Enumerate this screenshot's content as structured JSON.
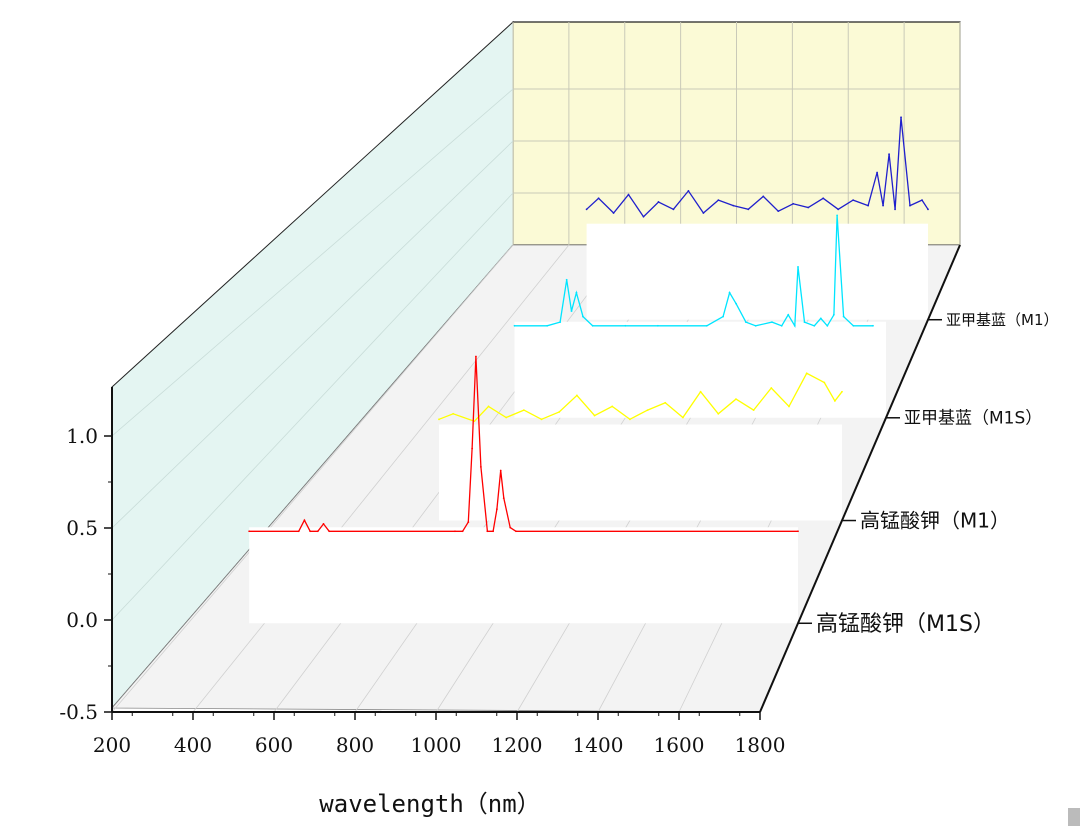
{
  "chart_data": {
    "type": "line",
    "title": "",
    "xlabel": "wavelength（nm）",
    "ylabel": "",
    "xlim": [
      200,
      1800
    ],
    "zlim": [
      -0.5,
      1.2
    ],
    "x_ticks": [
      "200",
      "400",
      "600",
      "800",
      "1000",
      "1200",
      "1400",
      "1600",
      "1800"
    ],
    "z_ticks": [
      "-0.5",
      "0.0",
      "0.5",
      "1.0"
    ],
    "grid": true,
    "series": [
      {
        "name": "高锰酸钾（M1S）",
        "color": "#ff0000",
        "x": [
          360,
          490,
          505,
          520,
          540,
          555,
          570,
          900,
          920,
          935,
          945,
          955,
          968,
          985,
          1000,
          1010,
          1020,
          1028,
          1045,
          1060,
          1800
        ],
        "y": [
          0.0,
          0.0,
          0.06,
          0.0,
          0.0,
          0.04,
          0.0,
          0.0,
          0.0,
          0.05,
          0.45,
          0.95,
          0.35,
          0.0,
          0.0,
          0.12,
          0.33,
          0.18,
          0.02,
          0.0,
          0.0
        ]
      },
      {
        "name": "高锰酸钾（M1）",
        "color": "#ffff00",
        "x": [
          660,
          700,
          760,
          800,
          850,
          900,
          950,
          1000,
          1050,
          1100,
          1150,
          1200,
          1250,
          1300,
          1350,
          1400,
          1450,
          1500,
          1550,
          1600,
          1650,
          1700,
          1750,
          1780,
          1800
        ],
        "y": [
          0.05,
          0.08,
          0.04,
          0.12,
          0.06,
          0.1,
          0.05,
          0.09,
          0.18,
          0.07,
          0.12,
          0.05,
          0.1,
          0.14,
          0.06,
          0.2,
          0.08,
          0.16,
          0.1,
          0.22,
          0.12,
          0.3,
          0.25,
          0.15,
          0.2
        ]
      },
      {
        "name": "亚甲基蓝（M1S）",
        "color": "#00e5ff",
        "x": [
          660,
          760,
          800,
          820,
          835,
          850,
          870,
          900,
          1000,
          1100,
          1250,
          1300,
          1320,
          1340,
          1370,
          1400,
          1450,
          1480,
          1500,
          1520,
          1530,
          1550,
          1580,
          1600,
          1620,
          1640,
          1650,
          1670,
          1700,
          1760
        ],
        "y": [
          0.0,
          0.0,
          0.02,
          0.25,
          0.08,
          0.18,
          0.05,
          0.0,
          0.0,
          0.0,
          0.0,
          0.05,
          0.18,
          0.12,
          0.02,
          0.0,
          0.02,
          0.0,
          0.06,
          0.0,
          0.32,
          0.02,
          0.0,
          0.04,
          0.0,
          0.06,
          0.6,
          0.05,
          0.0,
          0.0
        ]
      },
      {
        "name": "亚甲基蓝（M1）",
        "color": "#2020cc",
        "x": [
          660,
          700,
          750,
          800,
          850,
          900,
          950,
          1000,
          1050,
          1100,
          1150,
          1200,
          1250,
          1300,
          1350,
          1400,
          1450,
          1500,
          1550,
          1600,
          1630,
          1650,
          1670,
          1690,
          1710,
          1740,
          1780,
          1800
        ],
        "y": [
          0.1,
          0.16,
          0.08,
          0.18,
          0.06,
          0.14,
          0.1,
          0.2,
          0.08,
          0.15,
          0.12,
          0.1,
          0.17,
          0.09,
          0.13,
          0.11,
          0.16,
          0.1,
          0.15,
          0.12,
          0.3,
          0.12,
          0.4,
          0.1,
          0.6,
          0.12,
          0.15,
          0.1
        ]
      }
    ]
  },
  "corner_mark_color": "#bbbbbb"
}
